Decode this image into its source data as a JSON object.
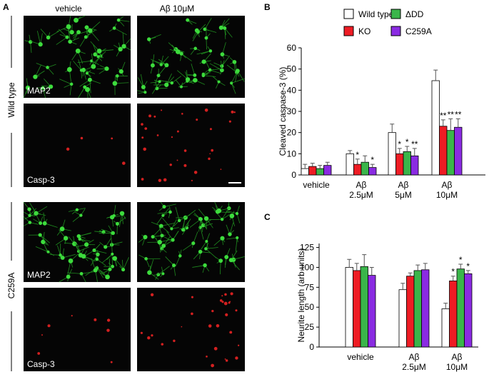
{
  "panel_a": {
    "label": "A",
    "columns": [
      "vehicle",
      "Aβ 10μM"
    ],
    "rows": [
      "Wild type",
      "C259A"
    ],
    "image_labels": [
      "MAP2",
      "Casp-3",
      "MAP2",
      "Casp-3"
    ]
  },
  "chart_data": [
    {
      "type": "bar",
      "label": "B",
      "ylabel": "Cleaved caspase-3 (%)",
      "categories": [
        "vehicle",
        "Aβ\n2.5μM",
        "Aβ\n5μM",
        "Aβ\n10μM"
      ],
      "ylim": [
        0,
        60
      ],
      "yticks": [
        0,
        10,
        20,
        30,
        40,
        50,
        60
      ],
      "series": [
        {
          "name": "Wild type",
          "color": "#ffffff",
          "values": [
            3,
            10,
            20,
            44.5
          ],
          "errors": [
            2,
            1.5,
            4,
            5
          ],
          "stars": [
            null,
            null,
            null,
            null
          ]
        },
        {
          "name": "KO",
          "color": "#ee1c24",
          "values": [
            4,
            5,
            10,
            23
          ],
          "errors": [
            1.5,
            2.5,
            2.5,
            3
          ],
          "stars": [
            null,
            "*",
            "*",
            "**"
          ]
        },
        {
          "name": "ΔDD",
          "color": "#3ab54a",
          "values": [
            3,
            6,
            11,
            21
          ],
          "errors": [
            1.5,
            3,
            2.5,
            5.5
          ],
          "stars": [
            null,
            null,
            "*",
            "**"
          ]
        },
        {
          "name": "C259A",
          "color": "#8a2be2",
          "values": [
            4.5,
            3.5,
            9,
            22.5
          ],
          "errors": [
            1.5,
            1.5,
            3.5,
            4
          ],
          "stars": [
            null,
            "*",
            "**",
            "**"
          ]
        }
      ]
    },
    {
      "type": "bar",
      "label": "C",
      "ylabel": "Neurite length (arb units)",
      "categories": [
        "vehicle",
        "Aβ\n2.5μM",
        "Aβ\n10μM"
      ],
      "ylim": [
        0,
        130
      ],
      "yticks": [
        0,
        25,
        50,
        75,
        100,
        125
      ],
      "series": [
        {
          "color": "#ffffff",
          "values": [
            100,
            72,
            48
          ],
          "errors": [
            10,
            8,
            7
          ],
          "stars": [
            null,
            null,
            null
          ]
        },
        {
          "color": "#ee1c24",
          "values": [
            96,
            89,
            83
          ],
          "errors": [
            9,
            4,
            6
          ],
          "stars": [
            null,
            null,
            "*"
          ]
        },
        {
          "color": "#3ab54a",
          "values": [
            101,
            96,
            98
          ],
          "errors": [
            15,
            7,
            6
          ],
          "stars": [
            null,
            null,
            "*"
          ]
        },
        {
          "color": "#8a2be2",
          "values": [
            90,
            97,
            92
          ],
          "errors": [
            10,
            8,
            4
          ],
          "stars": [
            null,
            null,
            "*"
          ]
        }
      ]
    }
  ]
}
